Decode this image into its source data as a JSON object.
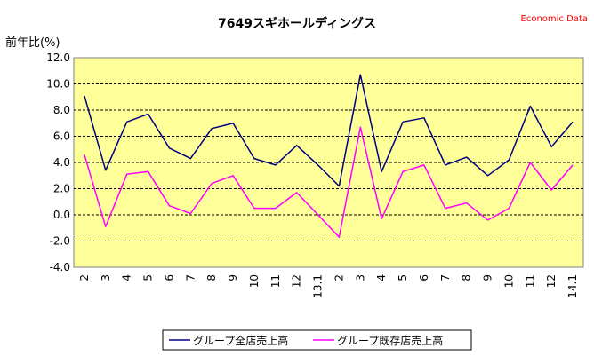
{
  "chart_data": {
    "type": "line",
    "title": "7649スギホールディングス",
    "source_label": "Economic Data",
    "ylabel": "前年比(%)",
    "xlabel": "",
    "ylim": [
      -4.0,
      12.0
    ],
    "yticks": [
      "12.0",
      "10.0",
      "8.0",
      "6.0",
      "4.0",
      "2.0",
      "0.0",
      "-2.0",
      "-4.0"
    ],
    "grid": true,
    "legend_position": "bottom",
    "plot_background": "#ffff99",
    "categories": [
      "2",
      "3",
      "4",
      "5",
      "6",
      "7",
      "8",
      "9",
      "10",
      "11",
      "12",
      "13.1",
      "2",
      "3",
      "4",
      "5",
      "6",
      "7",
      "8",
      "9",
      "10",
      "11",
      "12",
      "14.1"
    ],
    "series": [
      {
        "name": "グループ全店売上高",
        "color": "#000080",
        "values": [
          9.1,
          3.4,
          7.1,
          7.7,
          5.1,
          4.3,
          6.6,
          7.0,
          4.3,
          3.8,
          5.3,
          3.8,
          2.2,
          10.7,
          3.3,
          7.1,
          7.4,
          3.8,
          4.4,
          3.0,
          4.2,
          8.3,
          5.2,
          7.1
        ]
      },
      {
        "name": "グループ既存店売上高",
        "color": "#ff00ff",
        "values": [
          4.6,
          -0.9,
          3.1,
          3.3,
          0.7,
          0.1,
          2.4,
          3.0,
          0.5,
          0.5,
          1.7,
          0.0,
          -1.7,
          6.7,
          -0.3,
          3.3,
          3.8,
          0.5,
          0.9,
          -0.4,
          0.5,
          4.0,
          1.9,
          3.8
        ]
      }
    ]
  }
}
